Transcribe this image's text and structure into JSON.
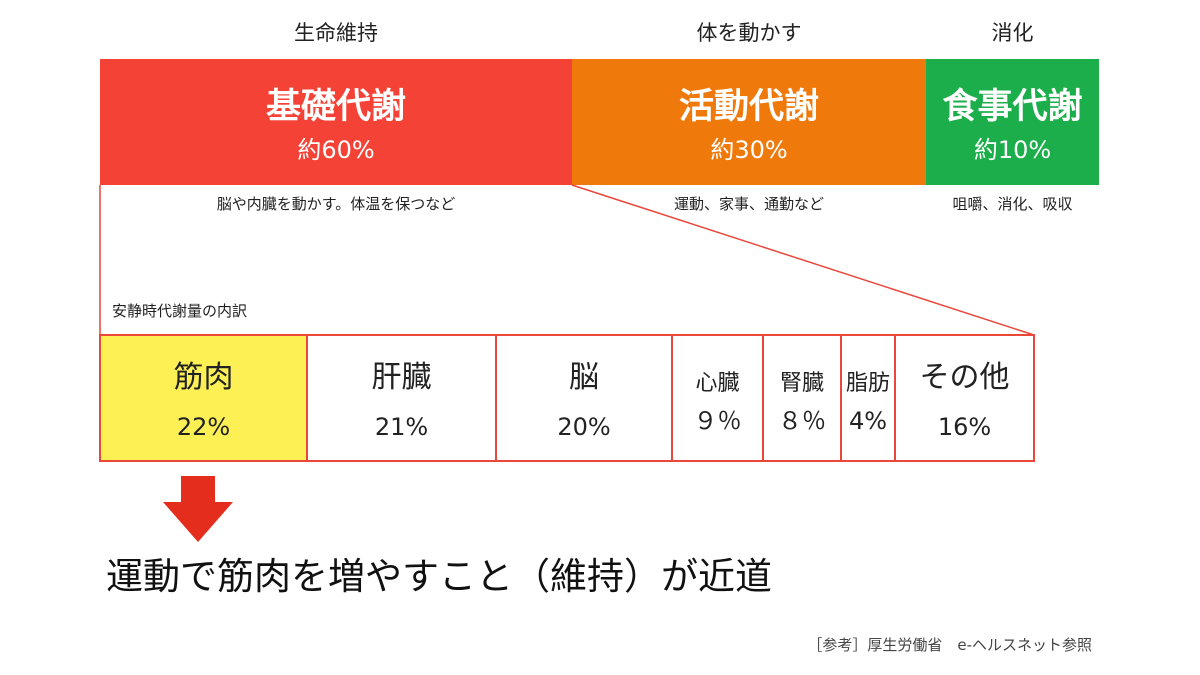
{
  "categories": [
    {
      "label": "生命維持"
    },
    {
      "label": "体を動かす"
    },
    {
      "label": "消化"
    }
  ],
  "blocks": [
    {
      "title": "基礎代謝",
      "percent": "約60%",
      "description": "脳や内臓を動かす。体温を保つなど",
      "color": "#f44336"
    },
    {
      "title": "活動代謝",
      "percent": "約30%",
      "description": "運動、家事、通勤など",
      "color": "#ef7a0b"
    },
    {
      "title": "食事代謝",
      "percent": "約10%",
      "description": "咀嚼、消化、吸収",
      "color": "#1bae4b"
    }
  ],
  "breakdown": {
    "title": "安静時代謝量の内訳",
    "border_color": "#e8473a",
    "highlight_color": "#fdf055",
    "items": [
      {
        "name": "筋肉",
        "percent": "22%"
      },
      {
        "name": "肝臓",
        "percent": "21%"
      },
      {
        "name": "脳",
        "percent": "20%"
      },
      {
        "name": "心臓",
        "percent": "９％"
      },
      {
        "name": "腎臓",
        "percent": "８％"
      },
      {
        "name": "脂肪",
        "percent": "4%"
      },
      {
        "name": "その他",
        "percent": "16%"
      }
    ]
  },
  "arrow": {
    "icon": "down-arrow-icon",
    "color": "#e52d1e"
  },
  "conclusion": "運動で筋肉を増やすこと（維持）が近道",
  "source": "［参考］厚生労働省　e-ヘルスネット参照"
}
